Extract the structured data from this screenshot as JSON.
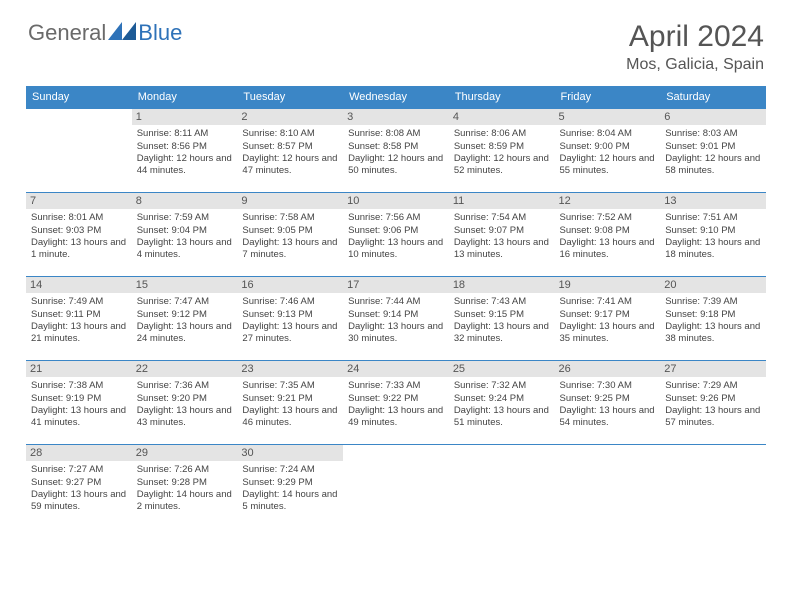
{
  "logo": {
    "text1": "General",
    "text2": "Blue"
  },
  "title": "April 2024",
  "location": "Mos, Galicia, Spain",
  "colors": {
    "header_bg": "#3b86c6",
    "header_text": "#ffffff",
    "daynum_bg": "#e4e4e4",
    "border": "#3b86c6",
    "text": "#444444",
    "logo_gray": "#6a6a6a",
    "logo_blue": "#2e72b8"
  },
  "weekdays": [
    "Sunday",
    "Monday",
    "Tuesday",
    "Wednesday",
    "Thursday",
    "Friday",
    "Saturday"
  ],
  "weeks": [
    [
      {
        "day": "",
        "lines": []
      },
      {
        "day": "1",
        "lines": [
          "Sunrise: 8:11 AM",
          "Sunset: 8:56 PM",
          "Daylight: 12 hours and 44 minutes."
        ]
      },
      {
        "day": "2",
        "lines": [
          "Sunrise: 8:10 AM",
          "Sunset: 8:57 PM",
          "Daylight: 12 hours and 47 minutes."
        ]
      },
      {
        "day": "3",
        "lines": [
          "Sunrise: 8:08 AM",
          "Sunset: 8:58 PM",
          "Daylight: 12 hours and 50 minutes."
        ]
      },
      {
        "day": "4",
        "lines": [
          "Sunrise: 8:06 AM",
          "Sunset: 8:59 PM",
          "Daylight: 12 hours and 52 minutes."
        ]
      },
      {
        "day": "5",
        "lines": [
          "Sunrise: 8:04 AM",
          "Sunset: 9:00 PM",
          "Daylight: 12 hours and 55 minutes."
        ]
      },
      {
        "day": "6",
        "lines": [
          "Sunrise: 8:03 AM",
          "Sunset: 9:01 PM",
          "Daylight: 12 hours and 58 minutes."
        ]
      }
    ],
    [
      {
        "day": "7",
        "lines": [
          "Sunrise: 8:01 AM",
          "Sunset: 9:03 PM",
          "Daylight: 13 hours and 1 minute."
        ]
      },
      {
        "day": "8",
        "lines": [
          "Sunrise: 7:59 AM",
          "Sunset: 9:04 PM",
          "Daylight: 13 hours and 4 minutes."
        ]
      },
      {
        "day": "9",
        "lines": [
          "Sunrise: 7:58 AM",
          "Sunset: 9:05 PM",
          "Daylight: 13 hours and 7 minutes."
        ]
      },
      {
        "day": "10",
        "lines": [
          "Sunrise: 7:56 AM",
          "Sunset: 9:06 PM",
          "Daylight: 13 hours and 10 minutes."
        ]
      },
      {
        "day": "11",
        "lines": [
          "Sunrise: 7:54 AM",
          "Sunset: 9:07 PM",
          "Daylight: 13 hours and 13 minutes."
        ]
      },
      {
        "day": "12",
        "lines": [
          "Sunrise: 7:52 AM",
          "Sunset: 9:08 PM",
          "Daylight: 13 hours and 16 minutes."
        ]
      },
      {
        "day": "13",
        "lines": [
          "Sunrise: 7:51 AM",
          "Sunset: 9:10 PM",
          "Daylight: 13 hours and 18 minutes."
        ]
      }
    ],
    [
      {
        "day": "14",
        "lines": [
          "Sunrise: 7:49 AM",
          "Sunset: 9:11 PM",
          "Daylight: 13 hours and 21 minutes."
        ]
      },
      {
        "day": "15",
        "lines": [
          "Sunrise: 7:47 AM",
          "Sunset: 9:12 PM",
          "Daylight: 13 hours and 24 minutes."
        ]
      },
      {
        "day": "16",
        "lines": [
          "Sunrise: 7:46 AM",
          "Sunset: 9:13 PM",
          "Daylight: 13 hours and 27 minutes."
        ]
      },
      {
        "day": "17",
        "lines": [
          "Sunrise: 7:44 AM",
          "Sunset: 9:14 PM",
          "Daylight: 13 hours and 30 minutes."
        ]
      },
      {
        "day": "18",
        "lines": [
          "Sunrise: 7:43 AM",
          "Sunset: 9:15 PM",
          "Daylight: 13 hours and 32 minutes."
        ]
      },
      {
        "day": "19",
        "lines": [
          "Sunrise: 7:41 AM",
          "Sunset: 9:17 PM",
          "Daylight: 13 hours and 35 minutes."
        ]
      },
      {
        "day": "20",
        "lines": [
          "Sunrise: 7:39 AM",
          "Sunset: 9:18 PM",
          "Daylight: 13 hours and 38 minutes."
        ]
      }
    ],
    [
      {
        "day": "21",
        "lines": [
          "Sunrise: 7:38 AM",
          "Sunset: 9:19 PM",
          "Daylight: 13 hours and 41 minutes."
        ]
      },
      {
        "day": "22",
        "lines": [
          "Sunrise: 7:36 AM",
          "Sunset: 9:20 PM",
          "Daylight: 13 hours and 43 minutes."
        ]
      },
      {
        "day": "23",
        "lines": [
          "Sunrise: 7:35 AM",
          "Sunset: 9:21 PM",
          "Daylight: 13 hours and 46 minutes."
        ]
      },
      {
        "day": "24",
        "lines": [
          "Sunrise: 7:33 AM",
          "Sunset: 9:22 PM",
          "Daylight: 13 hours and 49 minutes."
        ]
      },
      {
        "day": "25",
        "lines": [
          "Sunrise: 7:32 AM",
          "Sunset: 9:24 PM",
          "Daylight: 13 hours and 51 minutes."
        ]
      },
      {
        "day": "26",
        "lines": [
          "Sunrise: 7:30 AM",
          "Sunset: 9:25 PM",
          "Daylight: 13 hours and 54 minutes."
        ]
      },
      {
        "day": "27",
        "lines": [
          "Sunrise: 7:29 AM",
          "Sunset: 9:26 PM",
          "Daylight: 13 hours and 57 minutes."
        ]
      }
    ],
    [
      {
        "day": "28",
        "lines": [
          "Sunrise: 7:27 AM",
          "Sunset: 9:27 PM",
          "Daylight: 13 hours and 59 minutes."
        ]
      },
      {
        "day": "29",
        "lines": [
          "Sunrise: 7:26 AM",
          "Sunset: 9:28 PM",
          "Daylight: 14 hours and 2 minutes."
        ]
      },
      {
        "day": "30",
        "lines": [
          "Sunrise: 7:24 AM",
          "Sunset: 9:29 PM",
          "Daylight: 14 hours and 5 minutes."
        ]
      },
      {
        "day": "",
        "lines": []
      },
      {
        "day": "",
        "lines": []
      },
      {
        "day": "",
        "lines": []
      },
      {
        "day": "",
        "lines": []
      }
    ]
  ]
}
